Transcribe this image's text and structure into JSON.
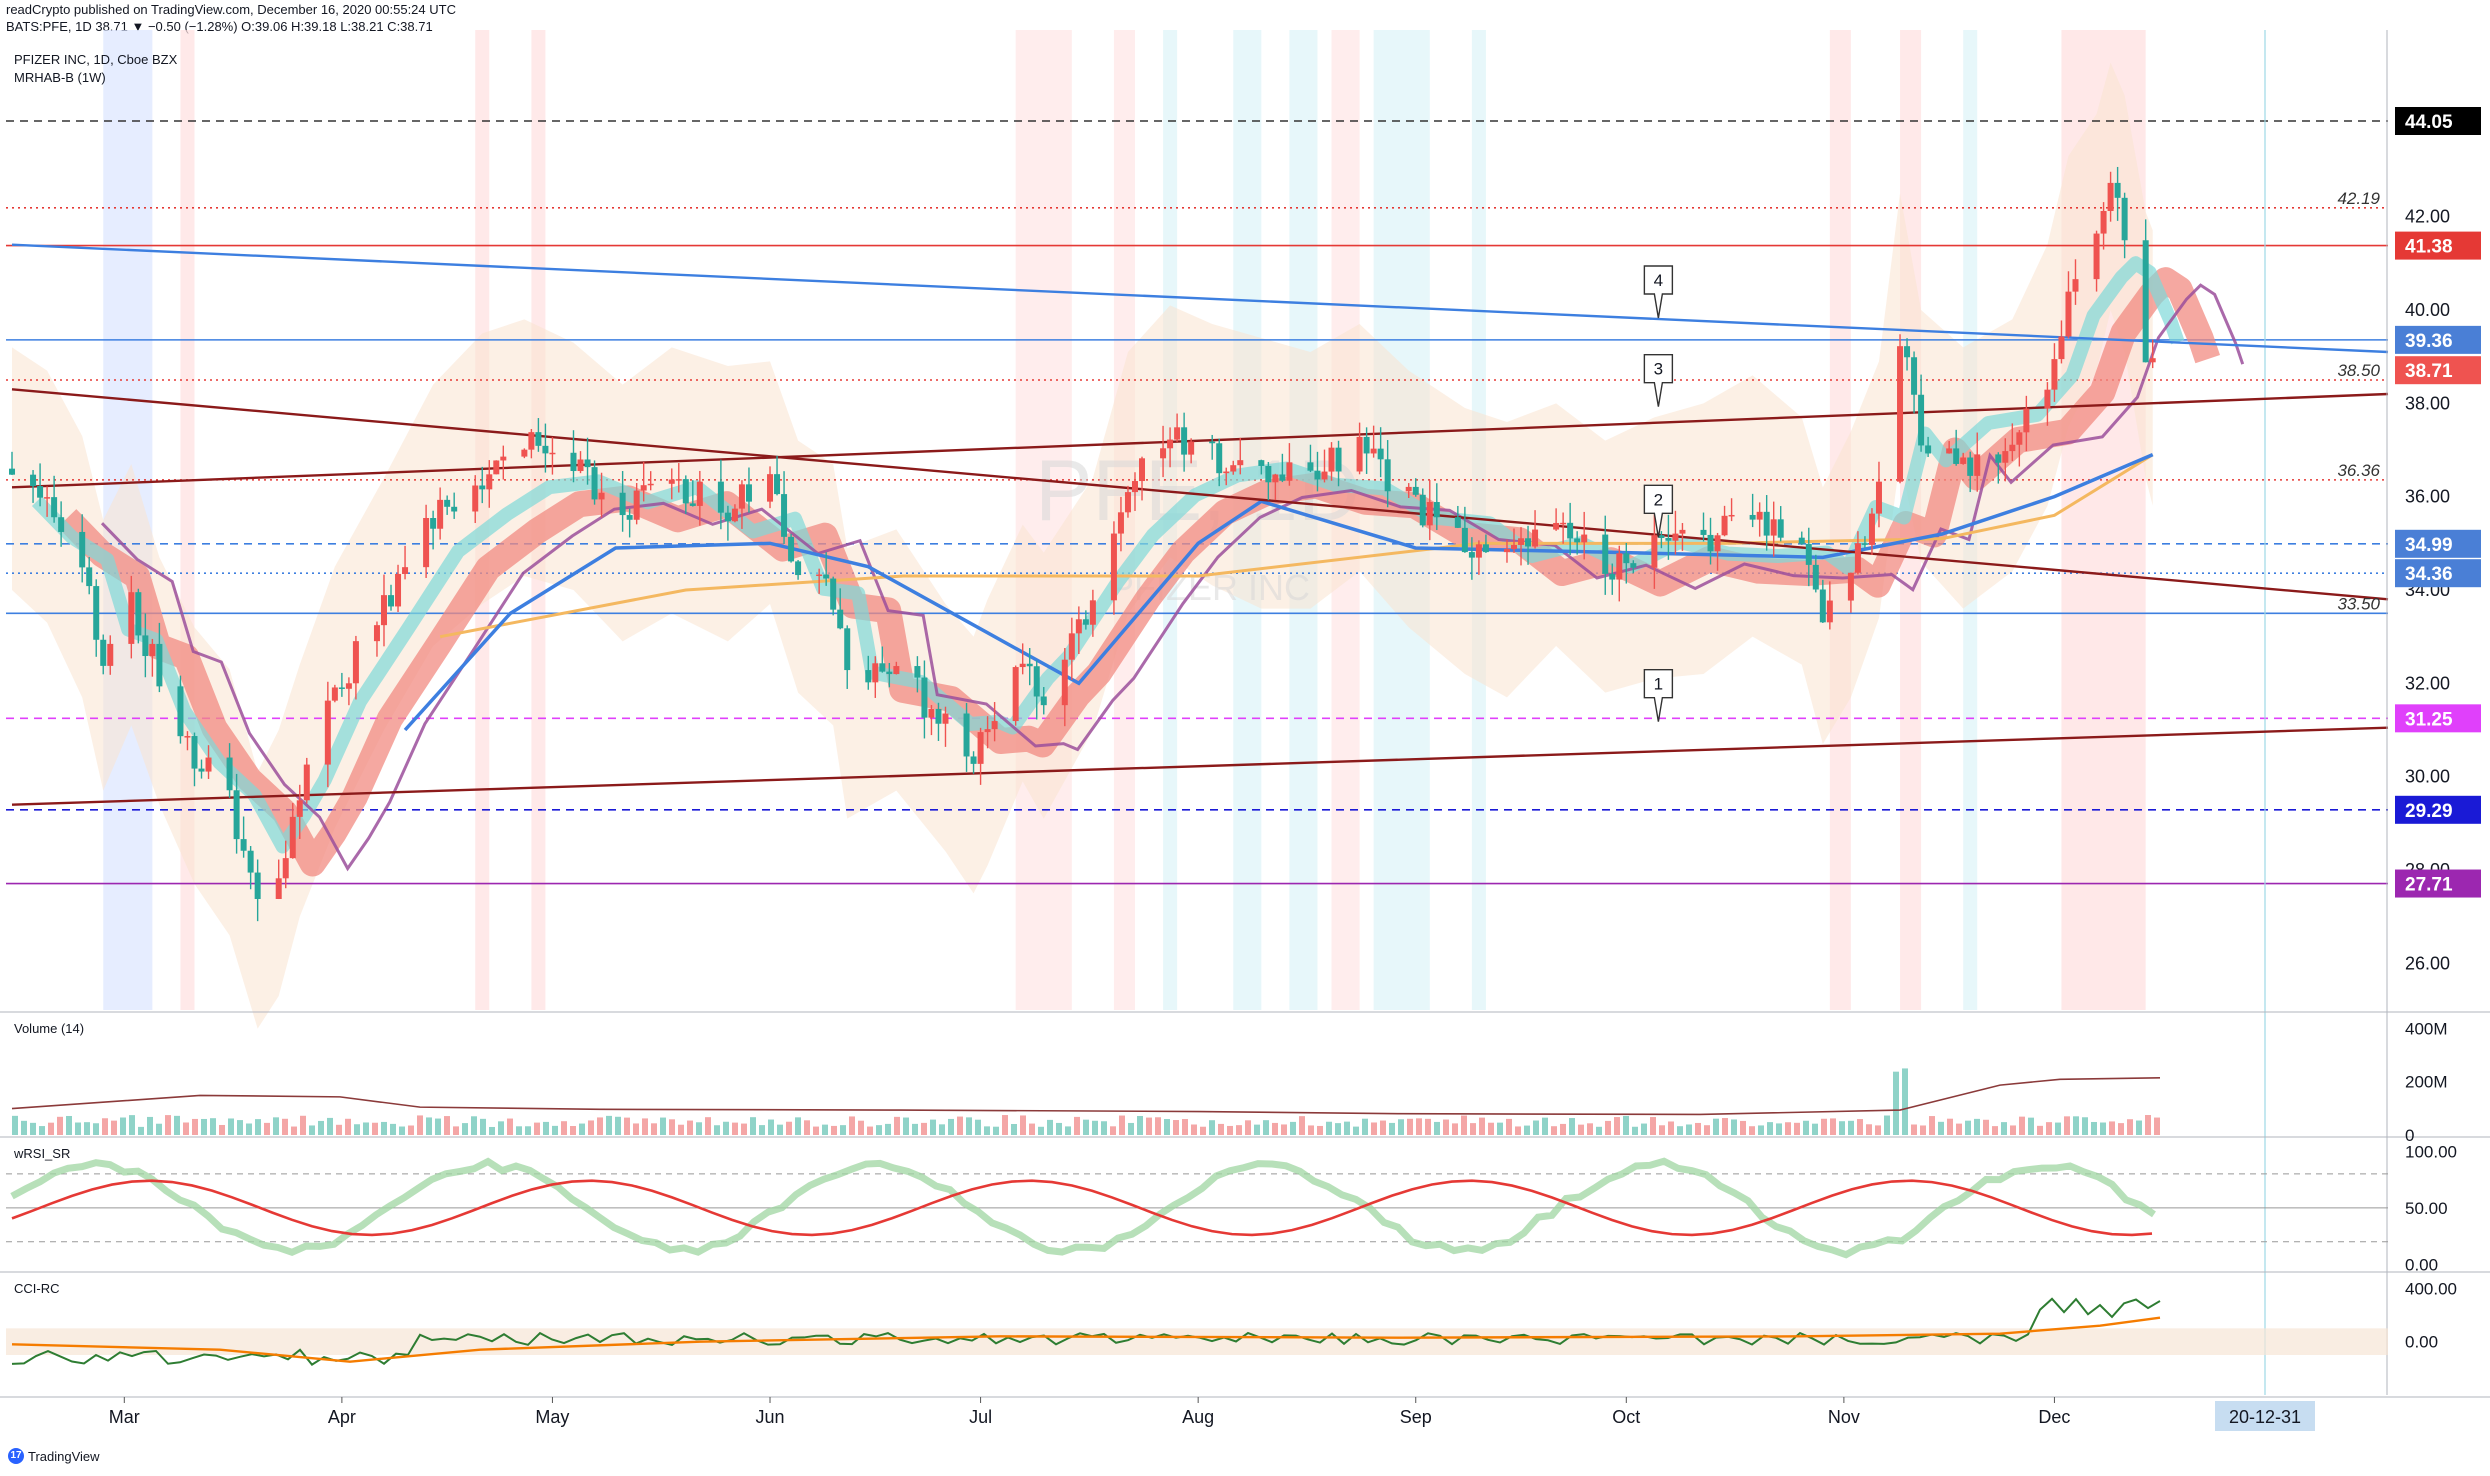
{
  "header": {
    "published": "readCrypto published on TradingView.com, December 16, 2020 00:55:24 UTC",
    "ohlc": "BATS:PFE, 1D 38.71 ▼ −0.50 (−1.28%) O:39.06 H:39.18 L:38.21 C:38.71"
  },
  "legend": {
    "symbol": "PFIZER INC, 1D, Cboe BZX",
    "indicator": "MRHAB-B (1W)",
    "volume": "Volume (14)",
    "wrsi": "wRSI_SR",
    "cci": "CCI-RC"
  },
  "watermark": {
    "big": "PFE, 1D",
    "small": "PFIZER INC"
  },
  "footer": {
    "brand": "TradingView",
    "brand_icon": "tradingview-logo-icon"
  },
  "colors": {
    "up": "#ef5350",
    "down": "#26a69a",
    "trend_blue": "#3d7fe0",
    "trend_red": "#8b1a1a",
    "ema_red": "#f28b82",
    "ema_cyan": "#7fd8d8",
    "purple": "#9b4f9b",
    "orange": "#f4b860",
    "magenta": "#e040fb"
  },
  "chart_data": [
    {
      "type": "candlestick",
      "title": "PFIZER INC, 1D, Cboe BZX",
      "x_ticks": [
        "Mar",
        "Apr",
        "May",
        "Jun",
        "Jul",
        "Aug",
        "Sep",
        "Oct",
        "Nov",
        "Dec"
      ],
      "x_cursor_label": "20-12-31",
      "y_ticks": [
        "26.00",
        "28.00",
        "30.00",
        "32.00",
        "34.00",
        "36.00",
        "38.00",
        "40.00",
        "42.00"
      ],
      "ylim": [
        25.0,
        46.0
      ],
      "close_path": [
        [
          "2020-02-14",
          36.6
        ],
        [
          "2020-02-19",
          36.0
        ],
        [
          "2020-02-24",
          34.5
        ],
        [
          "2020-02-27",
          32.6
        ],
        [
          "2020-03-02",
          33.7
        ],
        [
          "2020-03-06",
          32.1
        ],
        [
          "2020-03-11",
          30.5
        ],
        [
          "2020-03-16",
          29.5
        ],
        [
          "2020-03-20",
          27.2
        ],
        [
          "2020-03-23",
          28.0
        ],
        [
          "2020-03-26",
          29.8
        ],
        [
          "2020-03-31",
          31.8
        ],
        [
          "2020-04-07",
          33.6
        ],
        [
          "2020-04-14",
          35.5
        ],
        [
          "2020-04-21",
          36.5
        ],
        [
          "2020-04-27",
          37.2
        ],
        [
          "2020-05-04",
          36.6
        ],
        [
          "2020-05-11",
          35.6
        ],
        [
          "2020-05-18",
          36.3
        ],
        [
          "2020-05-26",
          35.8
        ],
        [
          "2020-06-01",
          36.3
        ],
        [
          "2020-06-05",
          34.5
        ],
        [
          "2020-06-10",
          33.9
        ],
        [
          "2020-06-12",
          32.0
        ],
        [
          "2020-06-19",
          32.3
        ],
        [
          "2020-06-26",
          31.1
        ],
        [
          "2020-06-30",
          30.3
        ],
        [
          "2020-07-02",
          31.0
        ],
        [
          "2020-07-07",
          32.5
        ],
        [
          "2020-07-10",
          31.8
        ],
        [
          "2020-07-17",
          33.8
        ],
        [
          "2020-07-22",
          36.4
        ],
        [
          "2020-07-28",
          37.3
        ],
        [
          "2020-08-03",
          36.8
        ],
        [
          "2020-08-10",
          36.4
        ],
        [
          "2020-08-17",
          36.5
        ],
        [
          "2020-08-24",
          37.0
        ],
        [
          "2020-08-31",
          35.9
        ],
        [
          "2020-09-08",
          35.0
        ],
        [
          "2020-09-14",
          34.6
        ],
        [
          "2020-09-21",
          35.4
        ],
        [
          "2020-09-28",
          34.5
        ],
        [
          "2020-10-05",
          34.9
        ],
        [
          "2020-10-12",
          35.1
        ],
        [
          "2020-10-19",
          35.6
        ],
        [
          "2020-10-26",
          35.1
        ],
        [
          "2020-10-29",
          33.5
        ],
        [
          "2020-11-02",
          34.6
        ],
        [
          "2020-11-06",
          36.0
        ],
        [
          "2020-11-09",
          39.5
        ],
        [
          "2020-11-12",
          37.4
        ],
        [
          "2020-11-18",
          36.5
        ],
        [
          "2020-11-25",
          37.0
        ],
        [
          "2020-11-30",
          38.5
        ],
        [
          "2020-12-03",
          40.3
        ],
        [
          "2020-12-07",
          41.6
        ],
        [
          "2020-12-09",
          42.6
        ],
        [
          "2020-12-11",
          41.8
        ],
        [
          "2020-12-14",
          39.2
        ],
        [
          "2020-12-15",
          38.71
        ]
      ],
      "last": {
        "open": 39.06,
        "high": 39.18,
        "low": 38.21,
        "close": 38.71,
        "change": -0.5,
        "change_pct": -1.28
      },
      "price_labels": [
        {
          "text": "44.05",
          "value": 44.05,
          "bg": "#000000"
        },
        {
          "text": "41.38",
          "value": 41.38,
          "bg": "#e53935"
        },
        {
          "text": "39.36",
          "value": 39.36,
          "bg": "#4a7fd6"
        },
        {
          "text": "38.71",
          "value": 38.71,
          "bg": "#ef5350"
        },
        {
          "text": "34.99",
          "value": 34.99,
          "bg": "#4a7fd6"
        },
        {
          "text": "34.36",
          "value": 34.36,
          "bg": "#4a7fd6"
        },
        {
          "text": "31.25",
          "value": 31.25,
          "bg": "#e040fb"
        },
        {
          "text": "29.29",
          "value": 29.29,
          "bg": "#1a1ad6"
        },
        {
          "text": "27.71",
          "value": 27.71,
          "bg": "#9c27b0"
        }
      ],
      "level_texts": [
        {
          "text": "42.19",
          "value": 42.19
        },
        {
          "text": "38.50",
          "value": 38.5
        },
        {
          "text": "36.36",
          "value": 36.36
        },
        {
          "text": "33.50",
          "value": 33.5
        }
      ],
      "horizontal_lines": [
        {
          "value": 44.05,
          "color": "#333333",
          "style": "dashed"
        },
        {
          "value": 42.19,
          "color": "#e53935",
          "style": "dotted"
        },
        {
          "value": 41.38,
          "color": "#e53935",
          "style": "solid"
        },
        {
          "value": 39.36,
          "color": "#3d7fe0",
          "style": "solid"
        },
        {
          "value": 38.5,
          "color": "#e53935",
          "style": "dotted"
        },
        {
          "value": 36.36,
          "color": "#e53935",
          "style": "dotted"
        },
        {
          "value": 34.99,
          "color": "#3d7fe0",
          "style": "dashed"
        },
        {
          "value": 34.36,
          "color": "#3d7fe0",
          "style": "dotted"
        },
        {
          "value": 33.5,
          "color": "#3d7fe0",
          "style": "solid"
        },
        {
          "value": 31.25,
          "color": "#e040fb",
          "style": "dashed"
        },
        {
          "value": 29.29,
          "color": "#1a1ad6",
          "style": "dashed"
        },
        {
          "value": 27.71,
          "color": "#9c27b0",
          "style": "solid"
        }
      ],
      "trendlines": [
        {
          "from": [
            "2020-02-14",
            41.4
          ],
          "to": [
            "2020-12-31",
            39.1
          ],
          "color": "#3d7fe0"
        },
        {
          "from": [
            "2020-02-14",
            36.2
          ],
          "to": [
            "2020-12-31",
            38.2
          ],
          "color": "#8b1a1a"
        },
        {
          "from": [
            "2020-02-14",
            38.3
          ],
          "to": [
            "2020-12-31",
            33.8
          ],
          "color": "#8b1a1a"
        },
        {
          "from": [
            "2020-02-14",
            29.4
          ],
          "to": [
            "2020-12-31",
            31.05
          ],
          "color": "#8b1a1a"
        }
      ],
      "callouts": [
        {
          "text": "1",
          "x": "2020-10-05",
          "y": 31.05
        },
        {
          "text": "2",
          "x": "2020-10-05",
          "y": 35.0
        },
        {
          "text": "3",
          "x": "2020-10-05",
          "y": 37.8
        },
        {
          "text": "4",
          "x": "2020-10-05",
          "y": 39.7
        }
      ]
    },
    {
      "type": "bar",
      "title": "Volume (14)",
      "y_ticks": [
        "0",
        "200M",
        "400M"
      ],
      "ylim": [
        0,
        450
      ]
    },
    {
      "type": "line",
      "title": "wRSI_SR",
      "y_ticks": [
        "0.00",
        "50.00",
        "100.00"
      ],
      "ylim": [
        -5,
        110
      ]
    },
    {
      "type": "line",
      "title": "CCI-RC",
      "y_ticks": [
        "0.00",
        "400.00"
      ],
      "ylim": [
        -400,
        500
      ]
    }
  ]
}
